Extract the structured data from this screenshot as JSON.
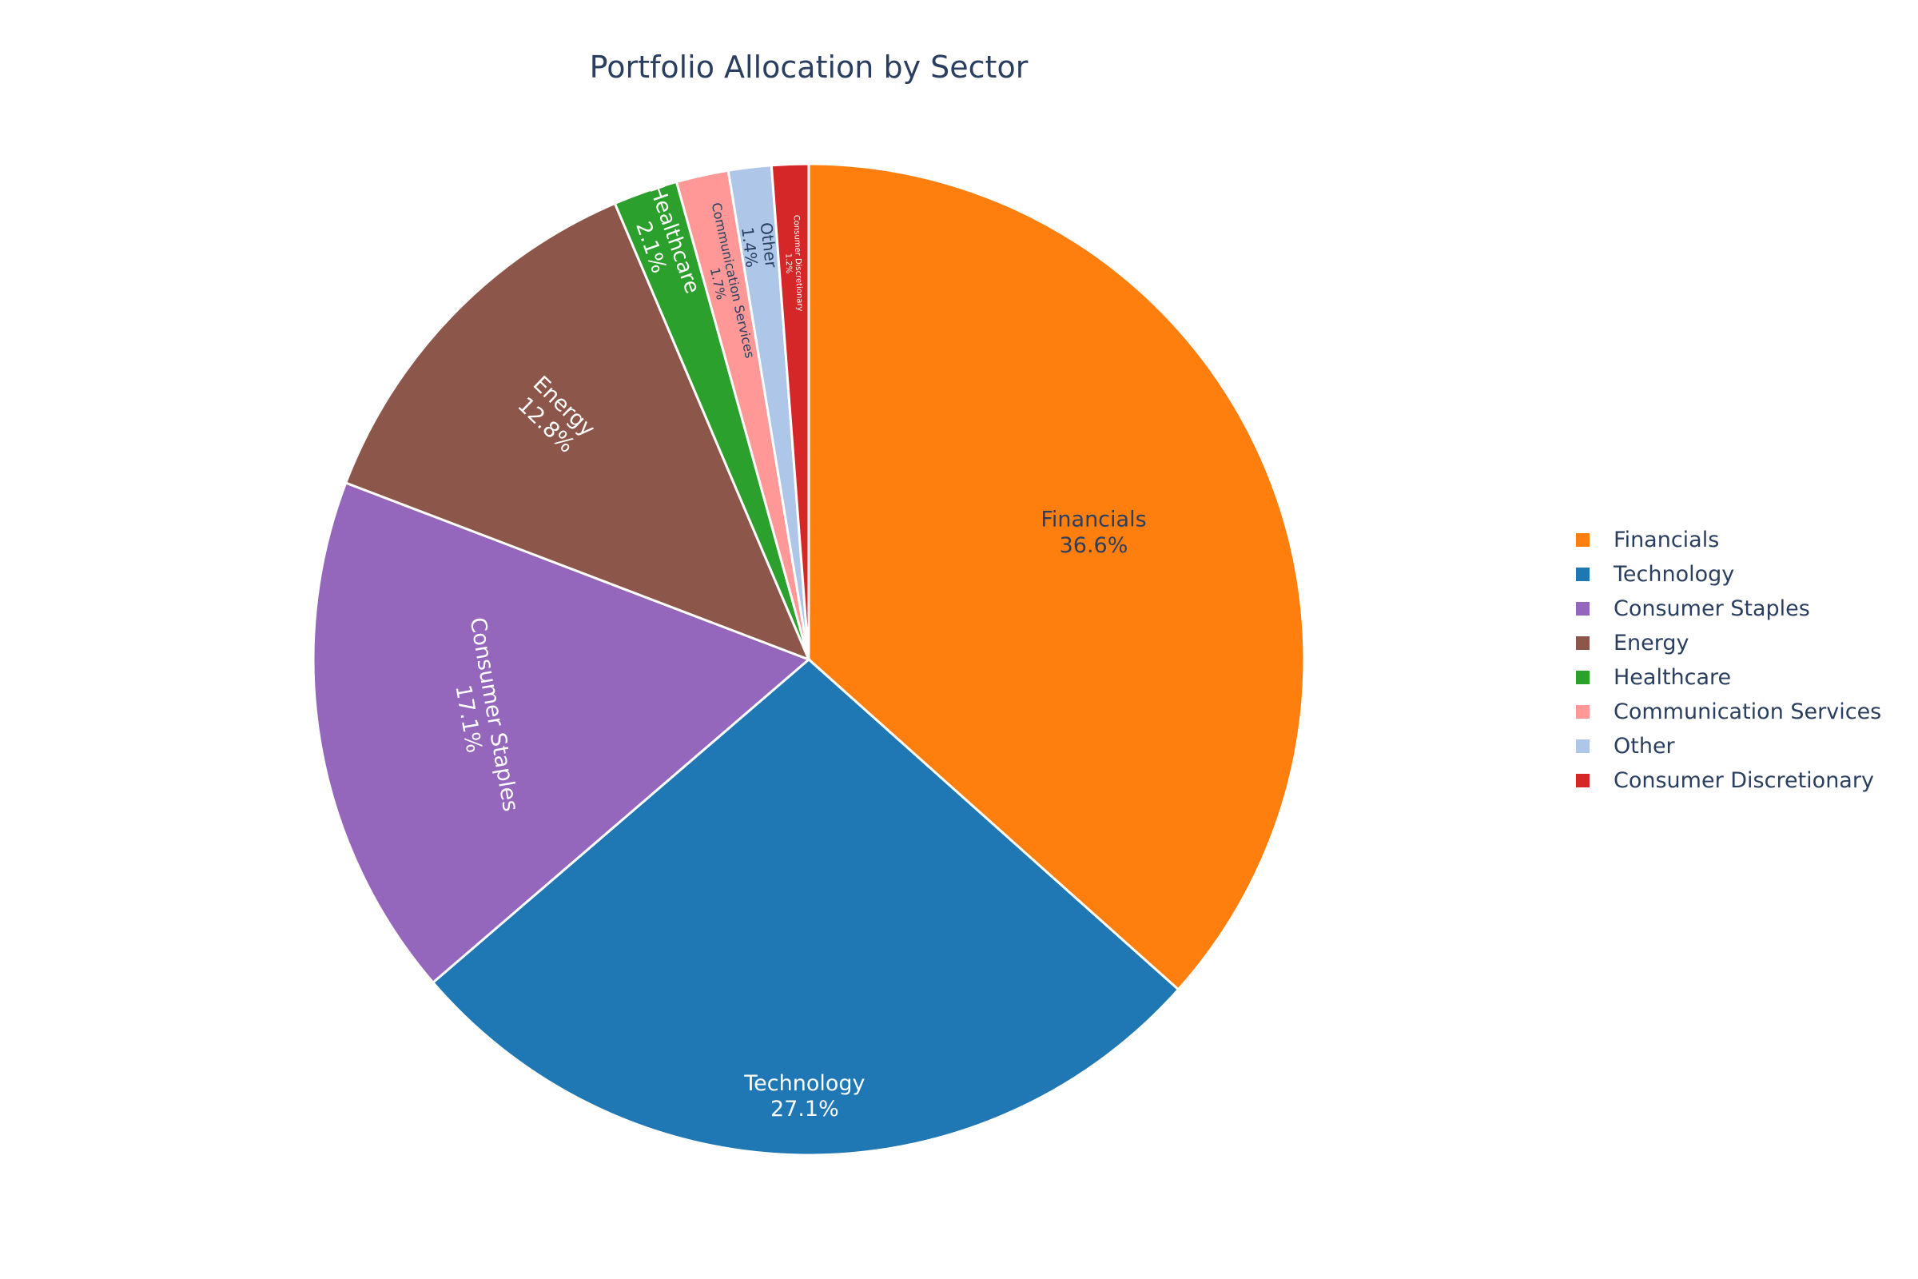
{
  "chart_data": {
    "type": "pie",
    "title": "Portfolio Allocation by Sector",
    "legend_position": "right",
    "sort": "descending",
    "direction": "clockwise",
    "slices": [
      {
        "label": "Financials",
        "value": 36.6,
        "text": "36.6%",
        "color": "#ff7f0e",
        "text_color": "#2a3f5f"
      },
      {
        "label": "Technology",
        "value": 27.1,
        "text": "27.1%",
        "color": "#1f77b4",
        "text_color": "#ffffff"
      },
      {
        "label": "Consumer Staples",
        "value": 17.1,
        "text": "17.1%",
        "color": "#9467bd",
        "text_color": "#ffffff"
      },
      {
        "label": "Energy",
        "value": 12.8,
        "text": "12.8%",
        "color": "#8c564b",
        "text_color": "#ffffff"
      },
      {
        "label": "Healthcare",
        "value": 2.1,
        "text": "2.1%",
        "color": "#2ca02c",
        "text_color": "#ffffff"
      },
      {
        "label": "Communication Services",
        "value": 1.7,
        "text": "1.7%",
        "color": "#ff9896",
        "text_color": "#2a3f5f"
      },
      {
        "label": "Other",
        "value": 1.4,
        "text": "1.4%",
        "color": "#aec7e8",
        "text_color": "#2a3f5f"
      },
      {
        "label": "Consumer Discretionary",
        "value": 1.2,
        "text": "1.2%",
        "color": "#d62728",
        "text_color": "#ffffff"
      }
    ]
  }
}
